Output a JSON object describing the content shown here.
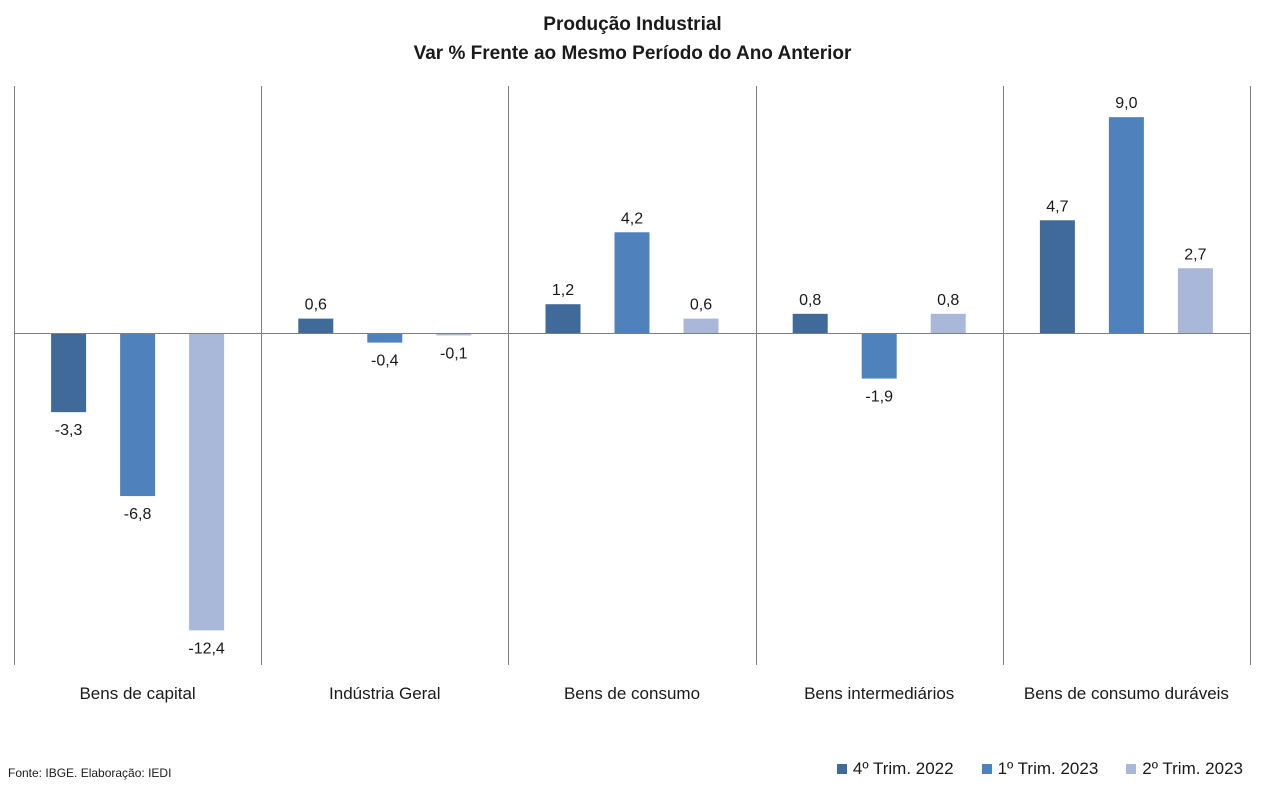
{
  "chart_data": {
    "type": "bar",
    "title": "Produção Industrial",
    "subtitle": "Var %  Frente ao Mesmo Período do Ano Anterior",
    "categories": [
      "Bens de capital",
      "Indústria Geral",
      "Bens de consumo",
      "Bens intermediários",
      "Bens de consumo duráveis"
    ],
    "series": [
      {
        "name": "4º Trim. 2022",
        "color": "#3f6a9a",
        "values": [
          -3.3,
          0.6,
          1.2,
          0.8,
          4.7
        ],
        "labels": [
          "-3,3",
          "0,6",
          "1,2",
          "0,8",
          "4,7"
        ]
      },
      {
        "name": "1º Trim. 2023",
        "color": "#4f81bd",
        "values": [
          -6.8,
          -0.4,
          4.2,
          -1.9,
          9.0
        ],
        "labels": [
          "-6,8",
          "-0,4",
          "4,2",
          "-1,9",
          "9,0"
        ]
      },
      {
        "name": "2º Trim. 2023",
        "color": "#a9b8d8",
        "values": [
          -12.4,
          -0.1,
          0.6,
          0.8,
          2.7
        ],
        "labels": [
          "-12,4",
          "-0,1",
          "0,6",
          "0,8",
          "2,7"
        ]
      }
    ],
    "ylim": [
      -14,
      10.3
    ],
    "grid": false,
    "legend_position": "bottom-right"
  },
  "source": "Fonte: IBGE. Elaboração: IEDI"
}
